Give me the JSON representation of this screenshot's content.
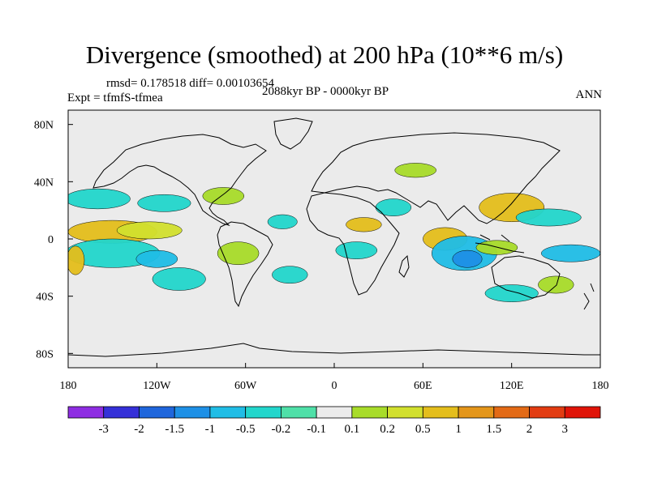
{
  "chart_data": {
    "type": "heatmap",
    "title": "Divergence (smoothed) at 200 hPa (10**6 m/s)",
    "stats_text": "rmsd= 0.178518 diff= 0.00103654",
    "experiment": "Expt = tfmfS-tfmea",
    "period": "2088kyr BP - 0000kyr BP",
    "season": "ANN",
    "x_range": [
      -180,
      180
    ],
    "y_range": [
      -90,
      90
    ],
    "x_ticks": [
      {
        "value": -180,
        "label": "180"
      },
      {
        "value": -120,
        "label": "120W"
      },
      {
        "value": -60,
        "label": "60W"
      },
      {
        "value": 0,
        "label": "0"
      },
      {
        "value": 60,
        "label": "60E"
      },
      {
        "value": 120,
        "label": "120E"
      },
      {
        "value": 180,
        "label": "180"
      }
    ],
    "y_ticks": [
      {
        "value": 80,
        "label": "80N"
      },
      {
        "value": 40,
        "label": "40N"
      },
      {
        "value": 0,
        "label": "0"
      },
      {
        "value": -40,
        "label": "40S"
      },
      {
        "value": -80,
        "label": "80S"
      }
    ],
    "colorbar": {
      "labels": [
        "-3",
        "-2",
        "-1.5",
        "-1",
        "-0.5",
        "-0.2",
        "-0.1",
        "0.1",
        "0.2",
        "0.5",
        "1",
        "1.5",
        "2",
        "3"
      ],
      "colors": [
        "#8e2de2",
        "#3530d8",
        "#1f66dc",
        "#1e90e6",
        "#20bde6",
        "#22d6cc",
        "#4fe0a8",
        "#ececec",
        "#a8dc2a",
        "#d2e02e",
        "#e4be1c",
        "#e4961a",
        "#e36a16",
        "#e23c12",
        "#e01408"
      ]
    },
    "field_regions": [
      {
        "lon": -150,
        "lat": 5,
        "rx": 30,
        "ry": 8,
        "color": "#e4be1c"
      },
      {
        "lon": -125,
        "lat": 6,
        "rx": 22,
        "ry": 6,
        "color": "#d2e02e"
      },
      {
        "lon": -150,
        "lat": -10,
        "rx": 32,
        "ry": 10,
        "color": "#22d6cc"
      },
      {
        "lon": -120,
        "lat": -14,
        "rx": 14,
        "ry": 6,
        "color": "#20bde6"
      },
      {
        "lon": -160,
        "lat": 28,
        "rx": 22,
        "ry": 7,
        "color": "#22d6cc"
      },
      {
        "lon": -115,
        "lat": 25,
        "rx": 18,
        "ry": 6,
        "color": "#22d6cc"
      },
      {
        "lon": -105,
        "lat": -28,
        "rx": 18,
        "ry": 8,
        "color": "#22d6cc"
      },
      {
        "lon": -175,
        "lat": -15,
        "rx": 6,
        "ry": 10,
        "color": "#e4be1c"
      },
      {
        "lon": -35,
        "lat": 12,
        "rx": 10,
        "ry": 5,
        "color": "#22d6cc"
      },
      {
        "lon": 20,
        "lat": 10,
        "rx": 12,
        "ry": 5,
        "color": "#e4be1c"
      },
      {
        "lon": 40,
        "lat": 22,
        "rx": 12,
        "ry": 6,
        "color": "#22d6cc"
      },
      {
        "lon": 75,
        "lat": 0,
        "rx": 15,
        "ry": 8,
        "color": "#e4be1c"
      },
      {
        "lon": 88,
        "lat": -10,
        "rx": 22,
        "ry": 12,
        "color": "#20bde6"
      },
      {
        "lon": 90,
        "lat": -14,
        "rx": 10,
        "ry": 6,
        "color": "#1e90e6"
      },
      {
        "lon": 120,
        "lat": 22,
        "rx": 22,
        "ry": 10,
        "color": "#e4be1c"
      },
      {
        "lon": 145,
        "lat": 15,
        "rx": 22,
        "ry": 6,
        "color": "#22d6cc"
      },
      {
        "lon": 160,
        "lat": -10,
        "rx": 20,
        "ry": 6,
        "color": "#20bde6"
      },
      {
        "lon": -75,
        "lat": 30,
        "rx": 14,
        "ry": 6,
        "color": "#a8dc2a"
      },
      {
        "lon": -65,
        "lat": -10,
        "rx": 14,
        "ry": 8,
        "color": "#a8dc2a"
      },
      {
        "lon": 15,
        "lat": -8,
        "rx": 14,
        "ry": 6,
        "color": "#22d6cc"
      },
      {
        "lon": 110,
        "lat": -6,
        "rx": 14,
        "ry": 5,
        "color": "#a8dc2a"
      },
      {
        "lon": 120,
        "lat": -38,
        "rx": 18,
        "ry": 6,
        "color": "#22d6cc"
      },
      {
        "lon": 150,
        "lat": -32,
        "rx": 12,
        "ry": 6,
        "color": "#a8dc2a"
      },
      {
        "lon": -30,
        "lat": -25,
        "rx": 12,
        "ry": 6,
        "color": "#22d6cc"
      },
      {
        "lon": 55,
        "lat": 48,
        "rx": 14,
        "ry": 5,
        "color": "#a8dc2a"
      }
    ]
  }
}
